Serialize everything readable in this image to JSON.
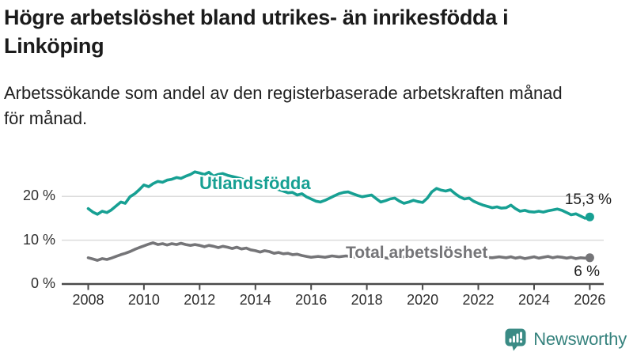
{
  "header": {
    "title_line1": "Högre arbetslöshet bland utrikes- än inrikesfödda i",
    "title_line2": "Linköping",
    "subtitle_line1": "Arbetssökande som andel av den registerbaserade arbetskraften månad",
    "subtitle_line2": "för månad."
  },
  "colors": {
    "accent_teal": "#17a093",
    "series_gray": "#757578",
    "gridline": "#dcdcdc",
    "axis": "#4a4a4a",
    "text_dark": "#1b1b1b",
    "logo_teal": "#35827d"
  },
  "chart_data": {
    "type": "line",
    "title": "Högre arbetslöshet bland utrikes- än inrikesfödda i Linköping",
    "subtitle": "Arbetssökande som andel av den registerbaserade arbetskraften månad för månad.",
    "xlabel": "",
    "ylabel": "",
    "xlim": [
      2007.05,
      2026.5
    ],
    "ylim": [
      0,
      30.5
    ],
    "grid": "horizontal",
    "legend_position": "inline-labels",
    "yticks": [
      {
        "value": 0,
        "label": "0 %"
      },
      {
        "value": 10,
        "label": "10 %"
      },
      {
        "value": 20,
        "label": "20 %"
      }
    ],
    "xticks": [
      {
        "value": 2008,
        "label": "2008"
      },
      {
        "value": 2010,
        "label": "2010"
      },
      {
        "value": 2012,
        "label": "2012"
      },
      {
        "value": 2014,
        "label": "2014"
      },
      {
        "value": 2016,
        "label": "2016"
      },
      {
        "value": 2018,
        "label": "2018"
      },
      {
        "value": 2020,
        "label": "2020"
      },
      {
        "value": 2022,
        "label": "2022"
      },
      {
        "value": 2024,
        "label": "2024"
      },
      {
        "value": 2026,
        "label": "2026"
      }
    ],
    "series": [
      {
        "name": "Utlandsfödda",
        "color": "#17a093",
        "end_label": "15,3 %",
        "end_value": 15.3,
        "points": [
          [
            2008.0,
            17.2
          ],
          [
            2008.17,
            16.4
          ],
          [
            2008.33,
            15.9
          ],
          [
            2008.5,
            16.6
          ],
          [
            2008.67,
            16.3
          ],
          [
            2008.83,
            16.9
          ],
          [
            2009.0,
            17.8
          ],
          [
            2009.17,
            18.7
          ],
          [
            2009.33,
            18.4
          ],
          [
            2009.5,
            19.9
          ],
          [
            2009.67,
            20.6
          ],
          [
            2009.83,
            21.5
          ],
          [
            2010.0,
            22.6
          ],
          [
            2010.17,
            22.2
          ],
          [
            2010.33,
            22.9
          ],
          [
            2010.5,
            23.4
          ],
          [
            2010.67,
            23.2
          ],
          [
            2010.83,
            23.7
          ],
          [
            2011.0,
            23.9
          ],
          [
            2011.17,
            24.3
          ],
          [
            2011.33,
            24.1
          ],
          [
            2011.5,
            24.6
          ],
          [
            2011.67,
            25.0
          ],
          [
            2011.83,
            25.6
          ],
          [
            2012.0,
            25.3
          ],
          [
            2012.17,
            25.0
          ],
          [
            2012.33,
            25.5
          ],
          [
            2012.5,
            24.6
          ],
          [
            2012.67,
            25.0
          ],
          [
            2012.83,
            25.2
          ],
          [
            2013.0,
            24.8
          ],
          [
            2013.25,
            24.4
          ],
          [
            2013.5,
            24.0
          ],
          [
            2013.75,
            23.5
          ],
          [
            2014.0,
            23.0
          ],
          [
            2014.25,
            22.6
          ],
          [
            2014.5,
            22.2
          ],
          [
            2014.75,
            21.7
          ],
          [
            2015.0,
            21.2
          ],
          [
            2015.17,
            20.8
          ],
          [
            2015.33,
            20.9
          ],
          [
            2015.5,
            20.3
          ],
          [
            2015.67,
            20.6
          ],
          [
            2015.83,
            19.9
          ],
          [
            2016.0,
            19.4
          ],
          [
            2016.17,
            18.9
          ],
          [
            2016.33,
            18.7
          ],
          [
            2016.5,
            19.1
          ],
          [
            2016.67,
            19.6
          ],
          [
            2016.83,
            20.1
          ],
          [
            2017.0,
            20.6
          ],
          [
            2017.17,
            20.9
          ],
          [
            2017.33,
            21.0
          ],
          [
            2017.5,
            20.6
          ],
          [
            2017.67,
            20.2
          ],
          [
            2017.83,
            19.9
          ],
          [
            2018.0,
            20.1
          ],
          [
            2018.17,
            20.3
          ],
          [
            2018.33,
            19.5
          ],
          [
            2018.5,
            18.7
          ],
          [
            2018.67,
            19.0
          ],
          [
            2018.83,
            19.4
          ],
          [
            2019.0,
            19.6
          ],
          [
            2019.17,
            18.9
          ],
          [
            2019.33,
            18.4
          ],
          [
            2019.5,
            18.7
          ],
          [
            2019.67,
            19.1
          ],
          [
            2019.83,
            18.8
          ],
          [
            2020.0,
            18.6
          ],
          [
            2020.17,
            19.6
          ],
          [
            2020.33,
            21.0
          ],
          [
            2020.5,
            21.8
          ],
          [
            2020.67,
            21.4
          ],
          [
            2020.83,
            21.2
          ],
          [
            2021.0,
            21.5
          ],
          [
            2021.17,
            20.6
          ],
          [
            2021.33,
            19.9
          ],
          [
            2021.5,
            19.4
          ],
          [
            2021.67,
            19.6
          ],
          [
            2021.83,
            18.9
          ],
          [
            2022.0,
            18.4
          ],
          [
            2022.17,
            18.0
          ],
          [
            2022.33,
            17.7
          ],
          [
            2022.5,
            17.4
          ],
          [
            2022.67,
            17.6
          ],
          [
            2022.83,
            17.3
          ],
          [
            2023.0,
            17.4
          ],
          [
            2023.17,
            18.0
          ],
          [
            2023.33,
            17.2
          ],
          [
            2023.5,
            16.6
          ],
          [
            2023.67,
            16.8
          ],
          [
            2023.83,
            16.5
          ],
          [
            2024.0,
            16.4
          ],
          [
            2024.17,
            16.6
          ],
          [
            2024.33,
            16.4
          ],
          [
            2024.5,
            16.7
          ],
          [
            2024.67,
            16.9
          ],
          [
            2024.83,
            17.1
          ],
          [
            2025.0,
            16.8
          ],
          [
            2025.17,
            16.3
          ],
          [
            2025.33,
            15.8
          ],
          [
            2025.5,
            16.0
          ],
          [
            2025.67,
            15.5
          ],
          [
            2025.83,
            15.0
          ],
          [
            2026.0,
            15.3
          ]
        ]
      },
      {
        "name": "Total arbetslöshet",
        "color": "#757578",
        "end_label": "6 %",
        "end_value": 6.0,
        "points": [
          [
            2008.0,
            6.0
          ],
          [
            2008.17,
            5.7
          ],
          [
            2008.33,
            5.4
          ],
          [
            2008.5,
            5.8
          ],
          [
            2008.67,
            5.6
          ],
          [
            2008.83,
            5.9
          ],
          [
            2009.0,
            6.3
          ],
          [
            2009.17,
            6.7
          ],
          [
            2009.33,
            7.0
          ],
          [
            2009.5,
            7.4
          ],
          [
            2009.67,
            7.9
          ],
          [
            2009.83,
            8.3
          ],
          [
            2010.0,
            8.7
          ],
          [
            2010.17,
            9.1
          ],
          [
            2010.33,
            9.4
          ],
          [
            2010.5,
            9.0
          ],
          [
            2010.67,
            9.2
          ],
          [
            2010.83,
            8.9
          ],
          [
            2011.0,
            9.2
          ],
          [
            2011.17,
            9.0
          ],
          [
            2011.33,
            9.3
          ],
          [
            2011.5,
            9.0
          ],
          [
            2011.67,
            8.8
          ],
          [
            2011.83,
            9.0
          ],
          [
            2012.0,
            8.8
          ],
          [
            2012.17,
            8.5
          ],
          [
            2012.33,
            8.8
          ],
          [
            2012.5,
            8.6
          ],
          [
            2012.67,
            8.3
          ],
          [
            2012.83,
            8.6
          ],
          [
            2013.0,
            8.4
          ],
          [
            2013.17,
            8.1
          ],
          [
            2013.33,
            8.4
          ],
          [
            2013.5,
            8.0
          ],
          [
            2013.67,
            8.2
          ],
          [
            2013.83,
            7.8
          ],
          [
            2014.0,
            7.6
          ],
          [
            2014.17,
            7.3
          ],
          [
            2014.33,
            7.6
          ],
          [
            2014.5,
            7.4
          ],
          [
            2014.67,
            7.0
          ],
          [
            2014.83,
            7.2
          ],
          [
            2015.0,
            6.9
          ],
          [
            2015.17,
            7.0
          ],
          [
            2015.33,
            6.7
          ],
          [
            2015.5,
            6.8
          ],
          [
            2015.67,
            6.5
          ],
          [
            2015.83,
            6.3
          ],
          [
            2016.0,
            6.1
          ],
          [
            2016.25,
            6.3
          ],
          [
            2016.5,
            6.1
          ],
          [
            2016.75,
            6.4
          ],
          [
            2017.0,
            6.2
          ],
          [
            2017.25,
            6.4
          ],
          [
            2017.5,
            6.2
          ],
          [
            2017.75,
            6.0
          ],
          [
            2018.0,
            6.2
          ],
          [
            2018.25,
            6.0
          ],
          [
            2018.5,
            6.1
          ],
          [
            2018.75,
            5.9
          ],
          [
            2019.0,
            6.0
          ],
          [
            2019.25,
            6.2
          ],
          [
            2019.5,
            6.1
          ],
          [
            2019.75,
            6.3
          ],
          [
            2020.0,
            6.5
          ],
          [
            2020.25,
            7.6
          ],
          [
            2020.5,
            8.0
          ],
          [
            2020.75,
            7.7
          ],
          [
            2021.0,
            7.4
          ],
          [
            2021.25,
            7.1
          ],
          [
            2021.5,
            6.8
          ],
          [
            2021.75,
            6.5
          ],
          [
            2022.0,
            6.3
          ],
          [
            2022.25,
            6.1
          ],
          [
            2022.5,
            6.0
          ],
          [
            2022.75,
            6.2
          ],
          [
            2023.0,
            6.0
          ],
          [
            2023.17,
            6.2
          ],
          [
            2023.33,
            5.9
          ],
          [
            2023.5,
            6.1
          ],
          [
            2023.67,
            5.8
          ],
          [
            2023.83,
            6.0
          ],
          [
            2024.0,
            6.2
          ],
          [
            2024.17,
            5.9
          ],
          [
            2024.33,
            6.1
          ],
          [
            2024.5,
            6.3
          ],
          [
            2024.67,
            6.0
          ],
          [
            2024.83,
            6.2
          ],
          [
            2025.0,
            6.1
          ],
          [
            2025.17,
            5.9
          ],
          [
            2025.33,
            6.1
          ],
          [
            2025.5,
            5.8
          ],
          [
            2025.67,
            6.0
          ],
          [
            2025.83,
            5.9
          ],
          [
            2026.0,
            6.0
          ]
        ]
      }
    ]
  },
  "footer": {
    "brand": "Newsworthy"
  }
}
